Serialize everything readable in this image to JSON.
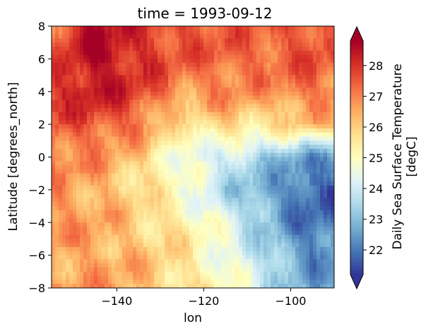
{
  "chart_data": {
    "type": "heatmap",
    "title": "time = 1993-09-12",
    "xlabel": "lon",
    "ylabel": "Latitude [degrees_north]",
    "xlim": [
      -155,
      -90
    ],
    "ylim": [
      -8,
      8
    ],
    "x_ticks": [
      -140,
      -120,
      -100
    ],
    "x_tick_labels": [
      "−140",
      "−120",
      "−100"
    ],
    "y_ticks": [
      8,
      6,
      4,
      2,
      0,
      -2,
      -4,
      -6,
      -8
    ],
    "y_tick_labels": [
      "8",
      "6",
      "4",
      "2",
      "0",
      "−2",
      "−4",
      "−6",
      "−8"
    ],
    "colorbar": {
      "label_line1": "Daily Sea Surface Temperature",
      "label_line2": "[degC]",
      "range": [
        21.2,
        28.8
      ],
      "extend": "both",
      "colormap": "RdYlBu_r",
      "ticks": [
        22,
        23,
        24,
        25,
        26,
        27,
        28
      ],
      "tick_labels": [
        "22",
        "23",
        "24",
        "25",
        "26",
        "27",
        "28"
      ],
      "colors": [
        "#313695",
        "#4575b4",
        "#74add1",
        "#abd9e9",
        "#e0f3f8",
        "#ffffbf",
        "#fee090",
        "#fdae61",
        "#f46d43",
        "#d73027",
        "#a50026"
      ]
    },
    "grid": false,
    "nx": 80,
    "ny": 64,
    "sst_field_description_points": {
      "lat_rows": [
        8,
        6,
        4,
        2,
        0,
        -2,
        -4,
        -6,
        -8
      ],
      "lon_cols": [
        -155,
        -145,
        -135,
        -125,
        -115,
        -105,
        -95,
        -90
      ],
      "values": [
        [
          27.3,
          28.6,
          28.0,
          27.6,
          27.5,
          27.4,
          27.8,
          27.6
        ],
        [
          27.6,
          28.7,
          28.1,
          27.5,
          27.4,
          27.3,
          27.6,
          27.4
        ],
        [
          28.0,
          28.4,
          27.8,
          26.8,
          27.0,
          26.8,
          27.3,
          27.0
        ],
        [
          27.6,
          27.6,
          27.2,
          25.4,
          26.0,
          25.6,
          26.4,
          26.2
        ],
        [
          27.0,
          26.8,
          26.0,
          24.6,
          24.0,
          23.2,
          22.4,
          22.6
        ],
        [
          26.8,
          26.6,
          25.8,
          24.9,
          23.6,
          22.6,
          21.6,
          21.8
        ],
        [
          26.8,
          26.6,
          26.0,
          25.5,
          24.4,
          23.0,
          21.8,
          22.0
        ],
        [
          26.6,
          26.6,
          26.2,
          25.6,
          24.7,
          23.4,
          22.2,
          22.4
        ],
        [
          26.6,
          26.8,
          26.4,
          25.8,
          25.0,
          23.8,
          22.6,
          22.8
        ]
      ]
    }
  }
}
